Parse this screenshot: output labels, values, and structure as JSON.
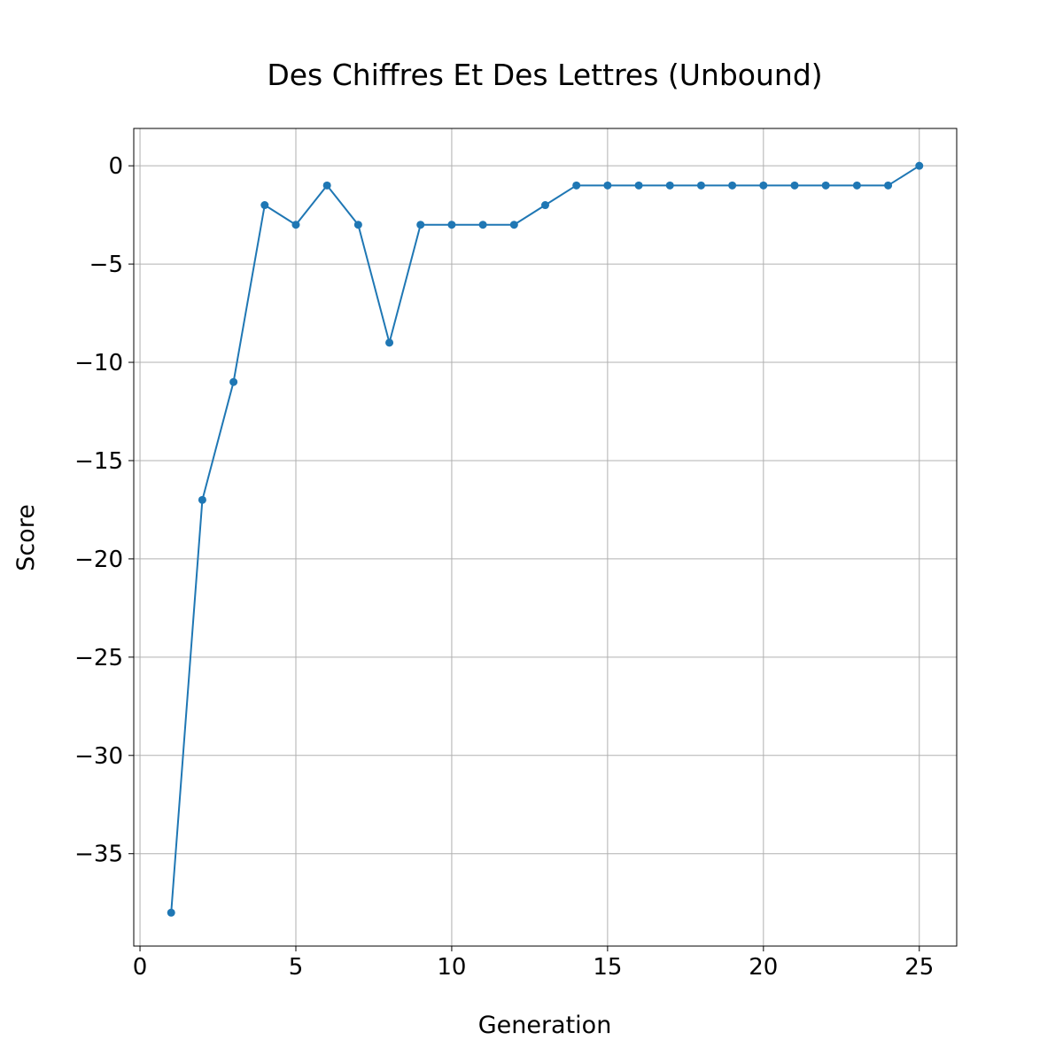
{
  "chart_data": {
    "type": "line",
    "title": "Des Chiffres Et Des Lettres (Unbound)",
    "xlabel": "Generation",
    "ylabel": "Score",
    "xlim": [
      -0.2,
      26.2
    ],
    "ylim": [
      -39.7,
      1.9
    ],
    "grid": true,
    "legend": "none",
    "line_color": "#1f77b4",
    "x_ticks": [
      0,
      5,
      10,
      15,
      20,
      25
    ],
    "x_tick_labels": [
      "0",
      "5",
      "10",
      "15",
      "20",
      "25"
    ],
    "y_ticks": [
      0,
      -5,
      -10,
      -15,
      -20,
      -25,
      -30,
      -35
    ],
    "y_tick_labels": [
      "0",
      "−5",
      "−10",
      "−15",
      "−20",
      "−25",
      "−30",
      "−35"
    ],
    "series": [
      {
        "x": [
          1,
          2,
          3,
          4,
          5,
          6,
          7,
          8,
          9,
          10,
          11,
          12,
          13,
          14,
          15,
          16,
          17,
          18,
          19,
          20,
          21,
          22,
          23,
          24,
          25
        ],
        "values": [
          -38,
          -17,
          -11,
          -2,
          -3,
          -1,
          -3,
          -9,
          -3,
          -3,
          -3,
          -3,
          -2,
          -1,
          -1,
          -1,
          -1,
          -1,
          -1,
          -1,
          -1,
          -1,
          -1,
          -1,
          0
        ]
      }
    ]
  }
}
